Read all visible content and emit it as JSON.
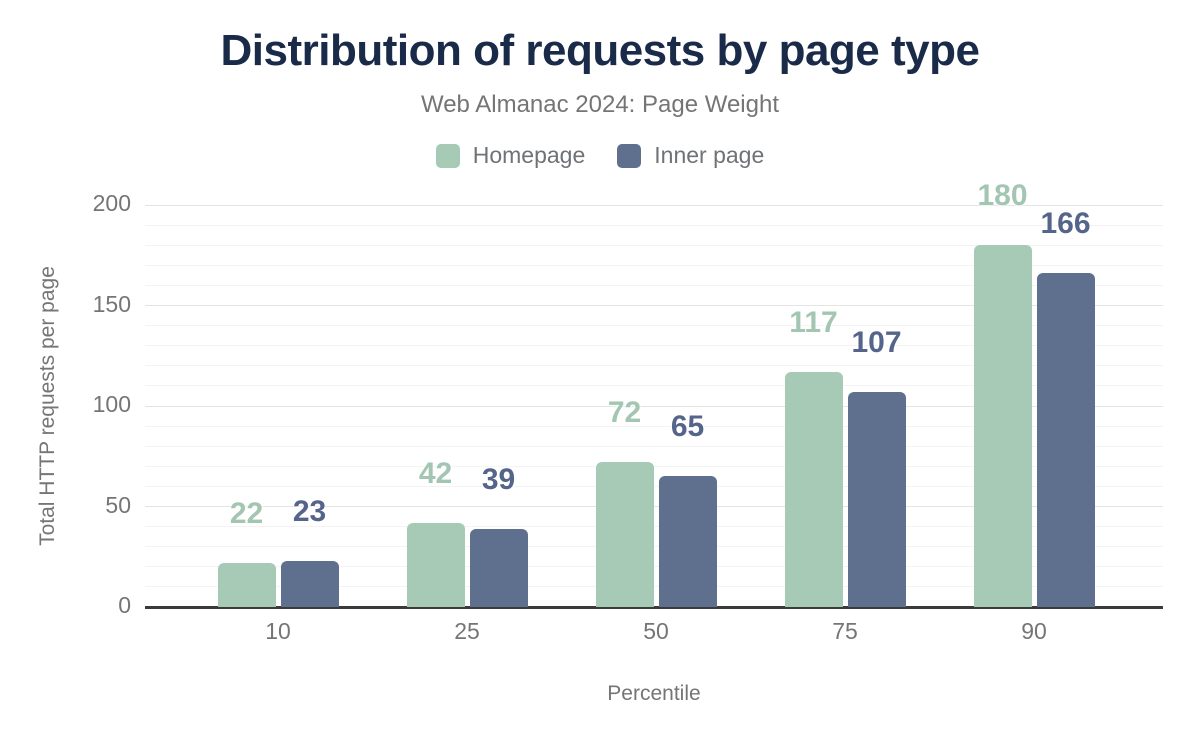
{
  "chart_data": {
    "type": "bar",
    "title": "Distribution of requests by page type",
    "subtitle": "Web Almanac 2024: Page Weight",
    "xlabel": "Percentile",
    "ylabel": "Total HTTP requests per page",
    "categories": [
      "10",
      "25",
      "50",
      "75",
      "90"
    ],
    "series": [
      {
        "name": "Homepage",
        "color": "#a6cab6",
        "label_color": "#a2c6b1",
        "values": [
          22,
          42,
          72,
          117,
          180
        ]
      },
      {
        "name": "Inner page",
        "color": "#5f708e",
        "label_color": "#54648a",
        "values": [
          23,
          39,
          65,
          107,
          166
        ]
      }
    ],
    "ylim": [
      0,
      200
    ],
    "yticks": [
      0,
      50,
      100,
      150,
      200
    ],
    "minor_grid_step": 10,
    "major_grid_step": 50,
    "grid": true,
    "bar_value_labels": true,
    "legend_position": "top"
  },
  "colors": {
    "title_text": "#1a2b49",
    "muted_text": "#757575",
    "axis_line": "#3a3a3a",
    "grid_major": "#e4e4e4",
    "grid_minor": "#f3f3f3",
    "background": "#ffffff"
  }
}
